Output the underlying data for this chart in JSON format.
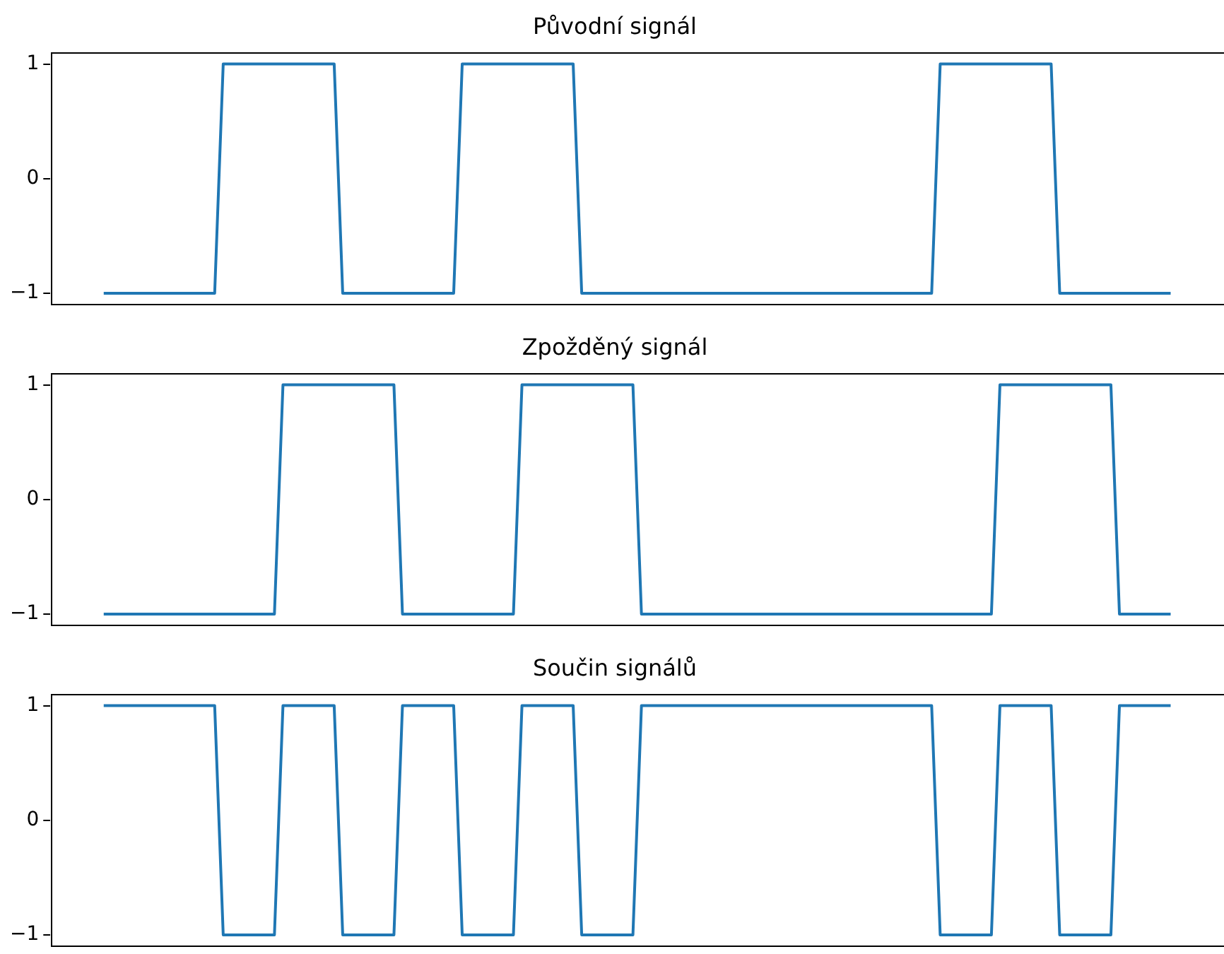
{
  "chart_data": [
    {
      "type": "line",
      "title": "Původní signál",
      "categories": [
        null,
        null,
        null,
        null,
        null,
        null,
        null,
        null,
        null,
        null,
        null,
        null,
        null,
        null,
        null,
        null,
        null,
        null,
        null,
        null,
        null,
        null,
        null,
        null,
        null,
        null,
        null,
        null,
        null,
        null,
        null,
        null,
        null,
        null,
        null,
        null,
        null,
        null,
        null,
        null,
        null,
        null,
        null,
        null,
        null,
        null,
        null,
        null,
        null,
        null,
        null,
        null,
        null,
        null,
        null,
        null,
        null,
        null,
        null,
        null,
        null,
        null,
        null,
        null,
        null,
        null,
        null,
        null,
        null,
        null,
        null,
        null,
        null,
        null,
        null,
        null,
        null,
        null,
        null,
        null,
        null,
        null,
        null,
        null,
        null,
        null,
        null,
        null,
        null,
        null,
        null,
        null,
        null,
        null,
        null,
        null,
        null,
        null,
        null,
        null,
        null,
        null,
        null,
        null,
        null,
        null,
        null,
        null,
        null,
        null,
        null,
        null,
        null,
        null,
        null,
        null,
        null,
        null,
        null,
        null,
        null,
        null,
        null,
        null,
        null,
        null
      ],
      "values": [
        -1,
        -1,
        -1,
        -1,
        -1,
        -1,
        -1,
        -1,
        -1,
        -1,
        -1,
        -1,
        -1,
        -1,
        1,
        1,
        1,
        1,
        1,
        1,
        1,
        1,
        1,
        1,
        1,
        1,
        1,
        1,
        -1,
        -1,
        -1,
        -1,
        -1,
        -1,
        -1,
        -1,
        -1,
        -1,
        -1,
        -1,
        -1,
        -1,
        1,
        1,
        1,
        1,
        1,
        1,
        1,
        1,
        1,
        1,
        1,
        1,
        1,
        1,
        -1,
        -1,
        -1,
        -1,
        -1,
        -1,
        -1,
        -1,
        -1,
        -1,
        -1,
        -1,
        -1,
        -1,
        -1,
        -1,
        -1,
        -1,
        -1,
        -1,
        -1,
        -1,
        -1,
        -1,
        -1,
        -1,
        -1,
        -1,
        -1,
        -1,
        -1,
        -1,
        -1,
        -1,
        -1,
        -1,
        -1,
        -1,
        -1,
        -1,
        -1,
        -1,
        1,
        1,
        1,
        1,
        1,
        1,
        1,
        1,
        1,
        1,
        1,
        1,
        1,
        1,
        -1,
        -1,
        -1,
        -1,
        -1,
        -1,
        -1,
        -1,
        -1,
        -1,
        -1,
        -1,
        -1,
        -1
      ],
      "color": "#1f77b4",
      "ylim": [
        -1.1,
        1.1
      ],
      "yticks": [
        -1,
        0,
        1
      ],
      "tick_labels": "y"
    },
    {
      "type": "line",
      "title": "Zpožděný signál",
      "categories": [
        null,
        null,
        null,
        null,
        null,
        null,
        null,
        null,
        null,
        null,
        null,
        null,
        null,
        null,
        null,
        null,
        null,
        null,
        null,
        null,
        null,
        null,
        null,
        null,
        null,
        null,
        null,
        null,
        null,
        null,
        null,
        null,
        null,
        null,
        null,
        null,
        null,
        null,
        null,
        null,
        null,
        null,
        null,
        null,
        null,
        null,
        null,
        null,
        null,
        null,
        null,
        null,
        null,
        null,
        null,
        null,
        null,
        null,
        null,
        null,
        null,
        null,
        null,
        null,
        null,
        null,
        null,
        null,
        null,
        null,
        null,
        null,
        null,
        null,
        null,
        null,
        null,
        null,
        null,
        null,
        null,
        null,
        null,
        null,
        null,
        null,
        null,
        null,
        null,
        null,
        null,
        null,
        null,
        null,
        null,
        null,
        null,
        null,
        null,
        null,
        null,
        null,
        null,
        null,
        null,
        null,
        null,
        null,
        null,
        null,
        null,
        null,
        null,
        null,
        null,
        null,
        null,
        null,
        null,
        null,
        null,
        null,
        null,
        null,
        null,
        null
      ],
      "values": [
        -1,
        -1,
        -1,
        -1,
        -1,
        -1,
        -1,
        -1,
        -1,
        -1,
        -1,
        -1,
        -1,
        -1,
        -1,
        -1,
        -1,
        -1,
        -1,
        -1,
        -1,
        1,
        1,
        1,
        1,
        1,
        1,
        1,
        1,
        1,
        1,
        1,
        1,
        1,
        1,
        -1,
        -1,
        -1,
        -1,
        -1,
        -1,
        -1,
        -1,
        -1,
        -1,
        -1,
        -1,
        -1,
        -1,
        1,
        1,
        1,
        1,
        1,
        1,
        1,
        1,
        1,
        1,
        1,
        1,
        1,
        1,
        -1,
        -1,
        -1,
        -1,
        -1,
        -1,
        -1,
        -1,
        -1,
        -1,
        -1,
        -1,
        -1,
        -1,
        -1,
        -1,
        -1,
        -1,
        -1,
        -1,
        -1,
        -1,
        -1,
        -1,
        -1,
        -1,
        -1,
        -1,
        -1,
        -1,
        -1,
        -1,
        -1,
        -1,
        -1,
        -1,
        -1,
        -1,
        -1,
        -1,
        -1,
        -1,
        1,
        1,
        1,
        1,
        1,
        1,
        1,
        1,
        1,
        1,
        1,
        1,
        1,
        1,
        -1,
        -1,
        -1,
        -1,
        -1,
        -1,
        -1
      ],
      "color": "#1f77b4",
      "ylim": [
        -1.1,
        1.1
      ],
      "yticks": [
        -1,
        0,
        1
      ],
      "tick_labels": "y"
    },
    {
      "type": "line",
      "title": "Součin signálů",
      "categories": [
        null,
        null,
        null,
        null,
        null,
        null,
        null,
        null,
        null,
        null,
        null,
        null,
        null,
        null,
        null,
        null,
        null,
        null,
        null,
        null,
        null,
        null,
        null,
        null,
        null,
        null,
        null,
        null,
        null,
        null,
        null,
        null,
        null,
        null,
        null,
        null,
        null,
        null,
        null,
        null,
        null,
        null,
        null,
        null,
        null,
        null,
        null,
        null,
        null,
        null,
        null,
        null,
        null,
        null,
        null,
        null,
        null,
        null,
        null,
        null,
        null,
        null,
        null,
        null,
        null,
        null,
        null,
        null,
        null,
        null,
        null,
        null,
        null,
        null,
        null,
        null,
        null,
        null,
        null,
        null,
        null,
        null,
        null,
        null,
        null,
        null,
        null,
        null,
        null,
        null,
        null,
        null,
        null,
        null,
        null,
        null,
        null,
        null,
        null,
        null,
        null,
        null,
        null,
        null,
        null,
        null,
        null,
        null,
        null,
        null,
        null,
        null,
        null,
        null,
        null,
        null,
        null,
        null,
        null,
        null,
        null,
        null,
        null,
        null,
        null,
        null
      ],
      "values": [
        1,
        1,
        1,
        1,
        1,
        1,
        1,
        1,
        1,
        1,
        1,
        1,
        1,
        1,
        -1,
        -1,
        -1,
        -1,
        -1,
        -1,
        -1,
        1,
        1,
        1,
        1,
        1,
        1,
        1,
        -1,
        -1,
        -1,
        -1,
        -1,
        -1,
        -1,
        1,
        1,
        1,
        1,
        1,
        1,
        1,
        -1,
        -1,
        -1,
        -1,
        -1,
        -1,
        -1,
        1,
        1,
        1,
        1,
        1,
        1,
        1,
        -1,
        -1,
        -1,
        -1,
        -1,
        -1,
        -1,
        1,
        1,
        1,
        1,
        1,
        1,
        1,
        1,
        1,
        1,
        1,
        1,
        1,
        1,
        1,
        1,
        1,
        1,
        1,
        1,
        1,
        1,
        1,
        1,
        1,
        1,
        1,
        1,
        1,
        1,
        1,
        1,
        1,
        1,
        1,
        -1,
        -1,
        -1,
        -1,
        -1,
        -1,
        -1,
        1,
        1,
        1,
        1,
        1,
        1,
        1,
        -1,
        -1,
        -1,
        -1,
        -1,
        -1,
        -1,
        1,
        1,
        1,
        1,
        1,
        1,
        1
      ],
      "color": "#1f77b4",
      "ylim": [
        -1.1,
        1.1
      ],
      "yticks": [
        -1,
        0,
        1
      ],
      "tick_labels": "y"
    }
  ]
}
